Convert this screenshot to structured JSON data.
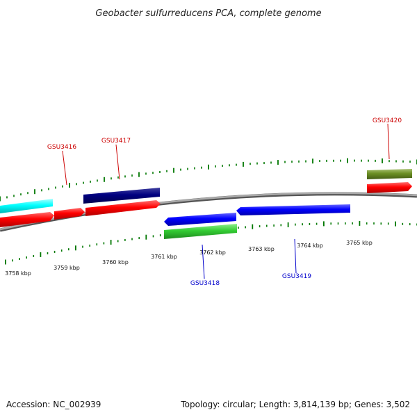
{
  "header": {
    "title": "Geobacter sulfurreducens PCA, complete genome"
  },
  "footer": {
    "accession": "Accession: NC_002939",
    "summary": "Topology: circular; Length: 3,814,139 bp; Genes: 3,502"
  },
  "scale": {
    "unit": "kbp",
    "labels": [
      "3758 kbp",
      "3759 kbp",
      "3760 kbp",
      "3761 kbp",
      "3762 kbp",
      "3763 kbp",
      "3764 kbp",
      "3765 kbp"
    ]
  },
  "gene_labels": [
    {
      "id": "GSU3416",
      "strand": "forward",
      "color": "#cc0000"
    },
    {
      "id": "GSU3417",
      "strand": "forward",
      "color": "#cc0000"
    },
    {
      "id": "GSU3420",
      "strand": "forward",
      "color": "#cc0000"
    },
    {
      "id": "GSU3418",
      "strand": "reverse",
      "color": "#0000cc"
    },
    {
      "id": "GSU3419",
      "strand": "reverse",
      "color": "#0000cc"
    }
  ],
  "feature_colors": {
    "cds_forward": "#ff0000",
    "cds_reverse": "#0000ff",
    "gene_cyan": "#00ffff",
    "gene_navy": "#000080",
    "gene_green": "#33cc33",
    "gene_olive": "#6b8e23",
    "backbone": "#888888",
    "tick_marks": "#007700"
  }
}
